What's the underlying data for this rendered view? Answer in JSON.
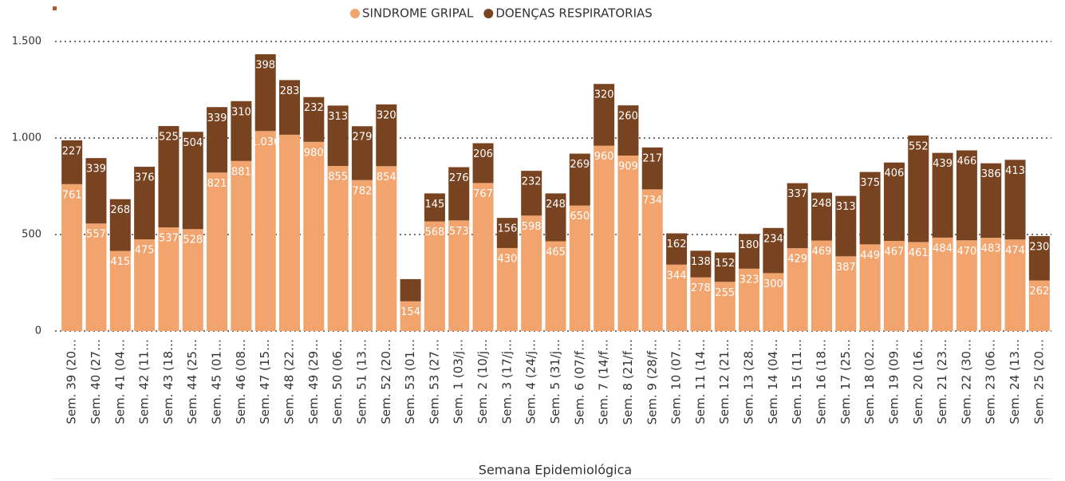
{
  "chart_data": {
    "type": "stacked_bar",
    "x_label": "Semana Epidemiológica",
    "categories": [
      "Sem. 39 (20…",
      "Sem. 40 (27…",
      "Sem. 41 (04…",
      "Sem. 42 (11…",
      "Sem. 43 (18…",
      "Sem. 44 (25…",
      "Sem. 45 (01…",
      "Sem. 46 (08…",
      "Sem. 47 (15…",
      "Sem. 48 (22…",
      "Sem. 49 (29…",
      "Sem. 50 (06…",
      "Sem. 51 (13…",
      "Sem. 52 (20…",
      "Sem. 53 (01…",
      "Sem. 53 (27…",
      "Sem. 1 (03/j…",
      "Sem. 2 (10/j…",
      "Sem. 3 (17/j…",
      "Sem. 4 (24/j…",
      "Sem. 5 (31/j…",
      "Sem. 6 (07/f…",
      "Sem. 7 (14/f…",
      "Sem. 8 (21/f…",
      "Sem. 9 (28/f…",
      "Sem. 10 (07…",
      "Sem. 11 (14…",
      "Sem. 12 (21…",
      "Sem. 13 (28…",
      "Sem. 14 (04…",
      "Sem. 15 (11…",
      "Sem. 16 (18…",
      "Sem. 17 (25…",
      "Sem. 18 (02…",
      "Sem. 19 (09…",
      "Sem. 20 (16…",
      "Sem. 21 (23…",
      "Sem. 22 (30…",
      "Sem. 23 (06…",
      "Sem. 24 (13…",
      "Sem. 25 (20…"
    ],
    "series": [
      {
        "name": "SINDROME GRIPAL",
        "color": "#f2a46f",
        "values": [
          761,
          557,
          415,
          475,
          537,
          528,
          821,
          881,
          1036,
          1017,
          980,
          855,
          782,
          854,
          154,
          568,
          573,
          767,
          430,
          598,
          465,
          650,
          960,
          909,
          734,
          344,
          278,
          255,
          323,
          300,
          429,
          469,
          387,
          449,
          467,
          461,
          484,
          470,
          483,
          474,
          262
        ],
        "value_labels": [
          "761",
          "557",
          "415",
          "475",
          "537",
          "528",
          "821",
          "881",
          "1.036",
          null,
          "980",
          "855",
          "782",
          "854",
          "154",
          "568",
          "573",
          "767",
          "430",
          "598",
          "465",
          "650",
          "960",
          "909",
          "734",
          "344",
          "278",
          "255",
          "323",
          "300",
          "429",
          "469",
          "387",
          "449",
          "467",
          "461",
          "484",
          "470",
          "483",
          "474",
          "262"
        ]
      },
      {
        "name": "DOENÇAS RESPIRATORIAS",
        "color": "#774321",
        "values": [
          227,
          339,
          268,
          376,
          525,
          504,
          339,
          310,
          398,
          283,
          232,
          313,
          279,
          320,
          115,
          145,
          276,
          206,
          156,
          232,
          248,
          269,
          320,
          260,
          217,
          162,
          138,
          152,
          180,
          234,
          337,
          248,
          313,
          375,
          406,
          552,
          439,
          466,
          386,
          413,
          230
        ],
        "value_labels": [
          "227",
          "339",
          "268",
          "376",
          "525",
          "504",
          "339",
          "310",
          "398",
          "283",
          "232",
          "313",
          "279",
          "320",
          null,
          "145",
          "276",
          "206",
          "156",
          "232",
          "248",
          "269",
          "320",
          "260",
          "217",
          "162",
          "138",
          "152",
          "180",
          "234",
          "337",
          "248",
          "313",
          "375",
          "406",
          "552",
          "439",
          "466",
          "386",
          "413",
          "230"
        ]
      }
    ],
    "ylim": [
      0,
      1500
    ],
    "yticks": [
      0,
      500,
      {
        "value": 1000,
        "label": "1.000"
      },
      {
        "value": 1500,
        "label": "1.500"
      }
    ],
    "grid": true,
    "legend": "top"
  }
}
